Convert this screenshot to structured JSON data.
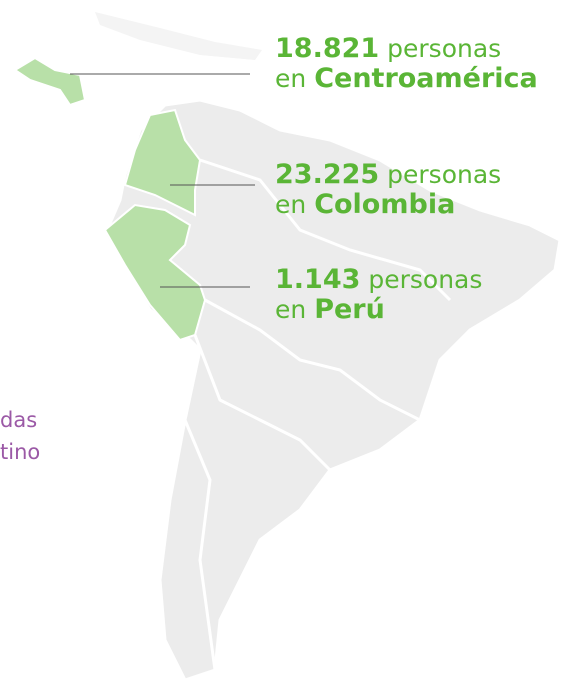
{
  "callouts": [
    {
      "number": "18.821",
      "unit": "personas",
      "prefix": "en",
      "region": "Centroamérica"
    },
    {
      "number": "23.225",
      "unit": "personas",
      "prefix": "en",
      "region": "Colombia"
    },
    {
      "number": "1.143",
      "unit": "personas",
      "prefix": "en",
      "region": "Perú"
    }
  ],
  "side_text": [
    "das",
    "tino"
  ]
}
